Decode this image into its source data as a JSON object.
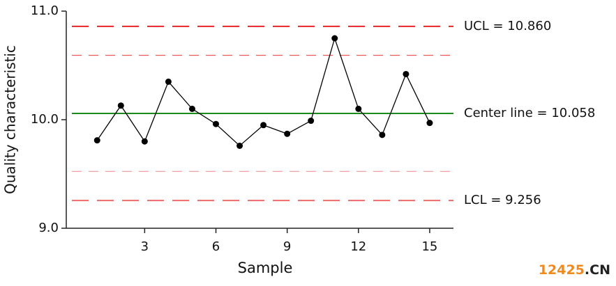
{
  "chart_data": {
    "type": "line",
    "x_label": "Sample",
    "y_label": "Quality characteristic",
    "x": [
      1,
      2,
      3,
      4,
      5,
      6,
      7,
      8,
      9,
      10,
      11,
      12,
      13,
      14,
      15
    ],
    "series": [
      {
        "color": "#000000",
        "values": [
          9.81,
          10.13,
          9.8,
          10.35,
          10.1,
          9.96,
          9.76,
          9.95,
          9.87,
          9.99,
          10.75,
          10.1,
          9.86,
          10.42,
          9.97
        ]
      }
    ],
    "xlim": [
      -0.3,
      16
    ],
    "ylim": [
      9.0,
      11.0
    ],
    "xticks": [
      3,
      6,
      9,
      12,
      15
    ],
    "yticks": [
      {
        "value": 9.0,
        "label": "9.0"
      },
      {
        "value": 10.0,
        "label": "10.0"
      },
      {
        "value": 11.0,
        "label": "11.0"
      }
    ],
    "control_lines": [
      {
        "label": "UCL = 10.860",
        "value": 10.86,
        "color": "#e8262a",
        "dashed": true
      },
      {
        "label": "Center line = 10.058",
        "value": 10.058,
        "color": "#1a8a1a",
        "dashed": false
      },
      {
        "label": "LCL = 9.256",
        "value": 9.256,
        "color": "#ee6a6a",
        "dashed": true
      }
    ],
    "warning_lines": [
      {
        "value": 10.593,
        "color": "#ee5555"
      },
      {
        "value": 9.523,
        "color": "#f5a0a0"
      }
    ],
    "watermark": [
      {
        "text": "12425",
        "color": "#f08a1c"
      },
      {
        "text": ".CN",
        "color": "#222222"
      }
    ]
  }
}
